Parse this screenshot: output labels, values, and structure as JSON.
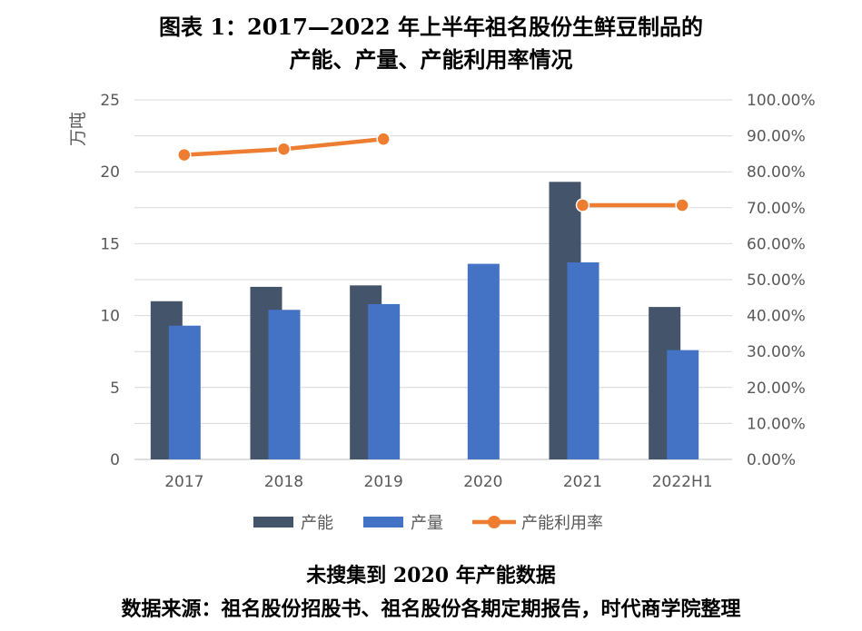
{
  "header": {
    "title_line1": "图表 1：2017—2022 年上半年祖名股份生鲜豆制品的",
    "title_line2": "产能、产量、产能利用率情况"
  },
  "notes": {
    "missing_note": "未搜集到 2020 年产能数据",
    "source": "数据来源：祖名股份招股书、祖名股份各期定期报告，时代商学院整理"
  },
  "chart_data": {
    "type": "bar",
    "categories": [
      "2017",
      "2018",
      "2019",
      "2020",
      "2021",
      "2022H1"
    ],
    "series": [
      {
        "name": "产能",
        "type": "bar",
        "axis": "left",
        "color": "#44546A",
        "values": [
          11.0,
          12.0,
          12.1,
          null,
          19.3,
          10.6
        ]
      },
      {
        "name": "产量",
        "type": "bar",
        "axis": "left",
        "color": "#4472C4",
        "values": [
          9.3,
          10.4,
          10.8,
          13.6,
          13.7,
          7.6
        ]
      },
      {
        "name": "产能利用率",
        "type": "line",
        "axis": "right",
        "color": "#ED7D31",
        "values": [
          84.7,
          86.3,
          89.1,
          null,
          70.7,
          70.7
        ]
      }
    ],
    "ylabel": "万吨",
    "ylim": [
      0,
      25
    ],
    "yticks": [
      "0",
      "5",
      "10",
      "15",
      "20",
      "25"
    ],
    "y2lim": [
      0,
      100
    ],
    "y2ticks": [
      "0.00%",
      "10.00%",
      "20.00%",
      "30.00%",
      "40.00%",
      "50.00%",
      "60.00%",
      "70.00%",
      "80.00%",
      "90.00%",
      "100.00%"
    ],
    "grid": true,
    "legend_position": "bottom"
  }
}
